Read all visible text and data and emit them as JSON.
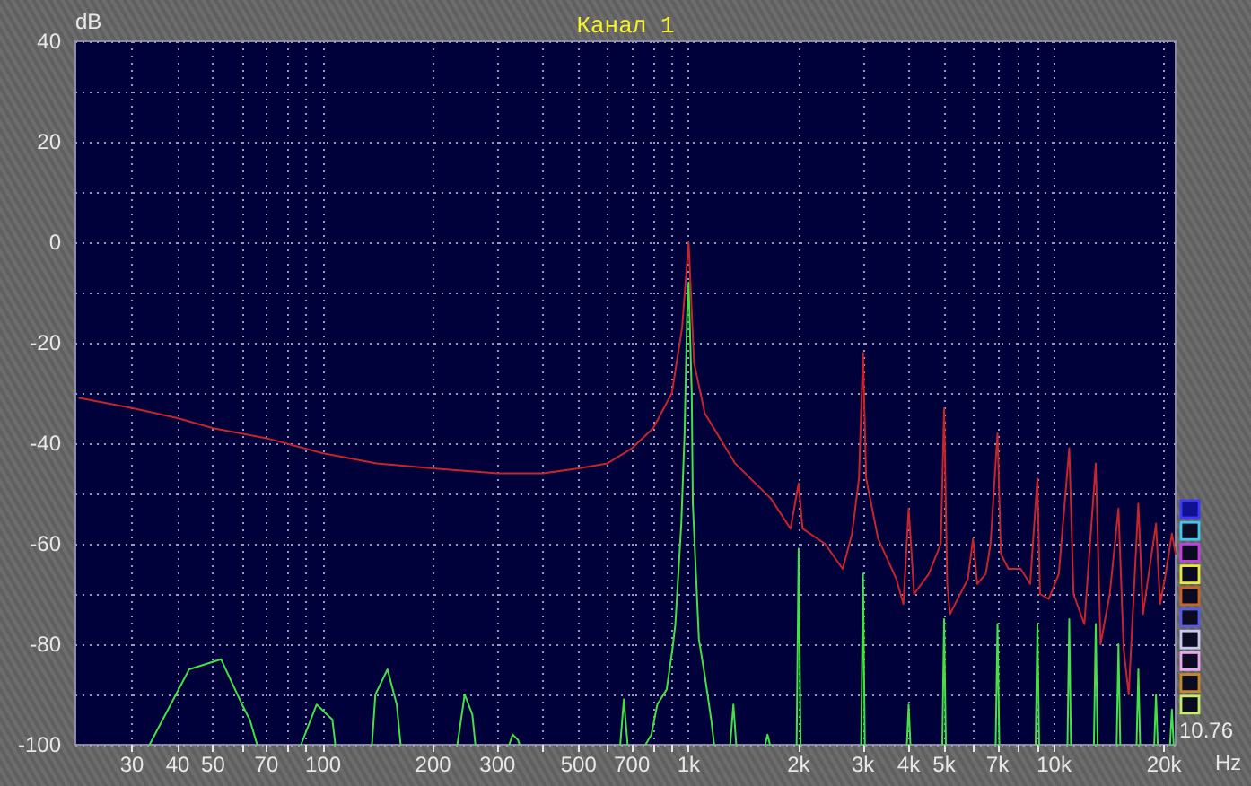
{
  "chart_data": {
    "type": "line",
    "title": "Канал 1",
    "xlabel": "Hz",
    "ylabel": "dB",
    "annotations": [
      "10.76"
    ],
    "log": "x",
    "grid": true,
    "marker": "none",
    "xlim": [
      21,
      21500
    ],
    "ylim": [
      -100,
      40
    ],
    "xticks": [
      30,
      40,
      50,
      {
        "value": 60,
        "label": null
      },
      70,
      {
        "value": 80,
        "label": null
      },
      {
        "value": 90,
        "label": null
      },
      100,
      200,
      300,
      {
        "value": 400,
        "label": null
      },
      500,
      {
        "value": 600,
        "label": null
      },
      700,
      {
        "value": 800,
        "label": null
      },
      {
        "value": 900,
        "label": null
      },
      {
        "value": 1000,
        "label": "1k"
      },
      {
        "value": 2000,
        "label": "2k"
      },
      {
        "value": 3000,
        "label": "3k"
      },
      {
        "value": 4000,
        "label": "4k"
      },
      {
        "value": 5000,
        "label": "5k"
      },
      {
        "value": 6000,
        "label": null
      },
      {
        "value": 7000,
        "label": "7k"
      },
      {
        "value": 8000,
        "label": null
      },
      {
        "value": 9000,
        "label": null
      },
      {
        "value": 10000,
        "label": "10k"
      },
      {
        "value": 20000,
        "label": "20k"
      }
    ],
    "yticks": [
      -100,
      {
        "value": -90,
        "label": null
      },
      -80,
      {
        "value": -70,
        "label": null
      },
      -60,
      {
        "value": -50,
        "label": null
      },
      -40,
      {
        "value": -30,
        "label": null
      },
      -20,
      {
        "value": -10,
        "label": null
      },
      0,
      {
        "value": 10,
        "label": null
      },
      20,
      {
        "value": 30,
        "label": null
      },
      40
    ],
    "series": [
      {
        "color": "#c8242c",
        "x": [
          21.5,
          30,
          40,
          50,
          70,
          100,
          140,
          200,
          300,
          400,
          500,
          600,
          700,
          800,
          900,
          960,
          1000,
          1035,
          1107,
          1340,
          1680,
          1900,
          2000,
          2050,
          2360,
          2640,
          2800,
          2925,
          3000,
          3060,
          3300,
          3700,
          3870,
          4000,
          4140,
          4540,
          4900,
          5000,
          5100,
          5190,
          5810,
          6000,
          6160,
          6500,
          6700,
          7000,
          7150,
          7500,
          8100,
          8600,
          9000,
          9150,
          9670,
          10300,
          11000,
          11300,
          12100,
          13000,
          13400,
          14200,
          15000,
          15500,
          16000,
          17000,
          17500,
          19000,
          19500,
          20200,
          21000,
          21500
        ],
        "values": [
          -31,
          -33,
          -35,
          -37,
          -39,
          -42,
          -44,
          -45,
          -46,
          -46,
          -45,
          -44,
          -41,
          -37,
          -30,
          -17,
          0,
          -24,
          -34,
          -44,
          -51,
          -57,
          -48,
          -57,
          -60,
          -65,
          -58,
          -47,
          -22,
          -47,
          -59,
          -67,
          -72,
          -53,
          -70,
          -66,
          -60,
          -33,
          -68,
          -74,
          -67,
          -59,
          -68,
          -66,
          -60,
          -38,
          -62,
          -65,
          -65,
          -68,
          -47,
          -70,
          -71,
          -66,
          -41,
          -70,
          -76,
          -44,
          -80,
          -70,
          -53,
          -81,
          -90,
          -52,
          -74,
          -56,
          -72,
          -66,
          -58,
          -62
        ]
      },
      {
        "color": "#44e044",
        "x": [
          33.5,
          43,
          52.6,
          60,
          63,
          66,
          75,
          87,
          96,
          106,
          108,
          120,
          136,
          139,
          150,
          159,
          163,
          200,
          233,
          244,
          256,
          261,
          290,
          323,
          330,
          341,
          345,
          500,
          650,
          665,
          681,
          720,
          762,
          791,
          821,
          871,
          903,
          920,
          955,
          975,
          990,
          1000,
          1020,
          1027,
          1067,
          1106,
          1153,
          1175,
          1250,
          1300,
          1326,
          1350,
          1500,
          1620,
          1644,
          1670,
          1800,
          1975,
          2000,
          2025,
          2500,
          2965,
          3000,
          3035,
          3500,
          3955,
          4000,
          4045,
          4500,
          4945,
          5000,
          5055,
          6000,
          6920,
          7000,
          7080,
          8000,
          8900,
          9000,
          9100,
          10000,
          10880,
          11000,
          11120,
          12000,
          12850,
          13000,
          13150,
          14000,
          14830,
          15000,
          15170,
          16000,
          16810,
          17000,
          17190,
          18000,
          18790,
          19000,
          19210,
          20000,
          20760,
          21000,
          21240
        ],
        "values": [
          -100,
          -85,
          -83,
          -92,
          -95,
          -100,
          null,
          -100,
          -92,
          -95,
          -100,
          null,
          -100,
          -90,
          -85,
          -92,
          -100,
          null,
          -100,
          -90,
          -94,
          -100,
          null,
          -100,
          -98,
          -99,
          -100,
          null,
          -100,
          -91,
          -100,
          null,
          -100,
          -98,
          -92,
          -89,
          -81,
          -76,
          -56,
          -38,
          -15,
          -8,
          -30,
          -52,
          -79,
          -86,
          -95,
          -100,
          null,
          -100,
          -92,
          -100,
          null,
          -100,
          -98,
          -100,
          null,
          -100,
          -61,
          -100,
          null,
          -100,
          -66,
          -100,
          null,
          -100,
          -92,
          -100,
          null,
          -100,
          -75,
          -100,
          null,
          -100,
          -76,
          -100,
          null,
          -100,
          -76,
          -100,
          null,
          -100,
          -75,
          -100,
          null,
          -100,
          -76,
          -100,
          null,
          -100,
          -80,
          -100,
          null,
          -100,
          -85,
          -100,
          null,
          -100,
          -90,
          -100,
          null,
          -100,
          -93,
          -100
        ]
      }
    ]
  }
}
